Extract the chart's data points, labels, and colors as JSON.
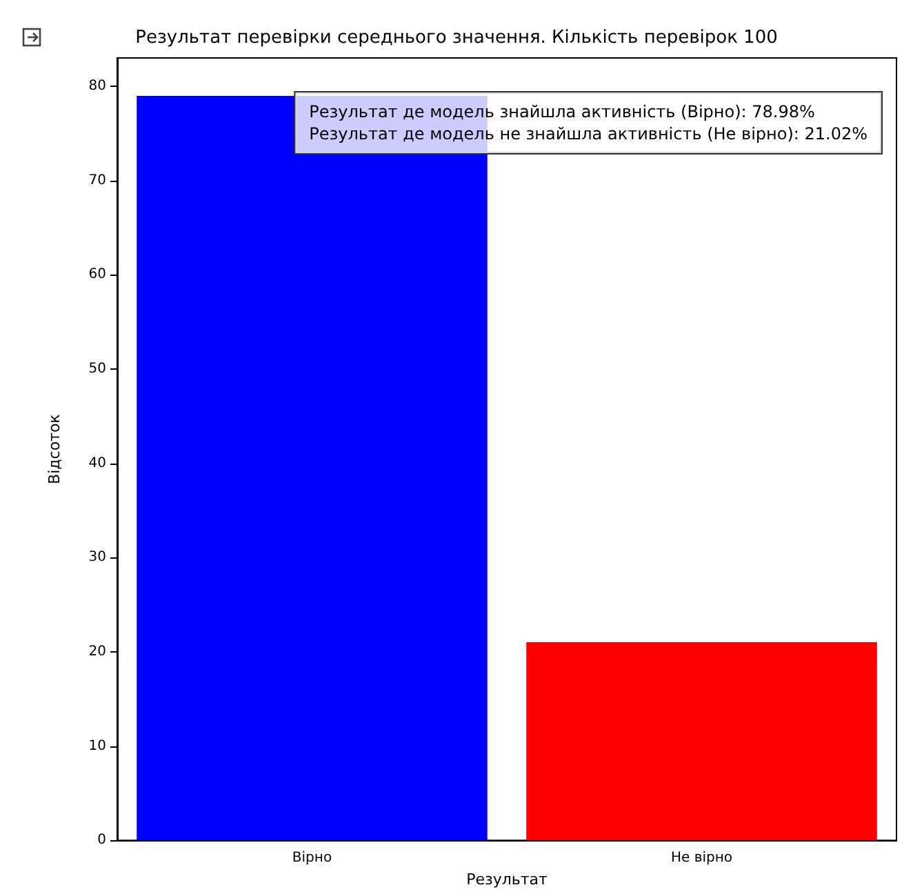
{
  "chart_data": {
    "type": "bar",
    "title": "Результат перевірки середнього значення. Кількість перевірок 100",
    "xlabel": "Результат",
    "ylabel": "Відсоток",
    "categories": [
      "Вірно",
      "Не вірно"
    ],
    "values": [
      78.98,
      21.02
    ],
    "colors": [
      "#0000ff",
      "#ff0000"
    ],
    "ylim": [
      0,
      83
    ],
    "yticks": [
      0,
      10,
      20,
      30,
      40,
      50,
      60,
      70,
      80
    ],
    "grid": false,
    "annotations": [
      "Результат де модель знайшла активність (Вірно): 78.98%",
      "Результат де модель не знайшла активність (Не вірно): 21.02%"
    ]
  }
}
